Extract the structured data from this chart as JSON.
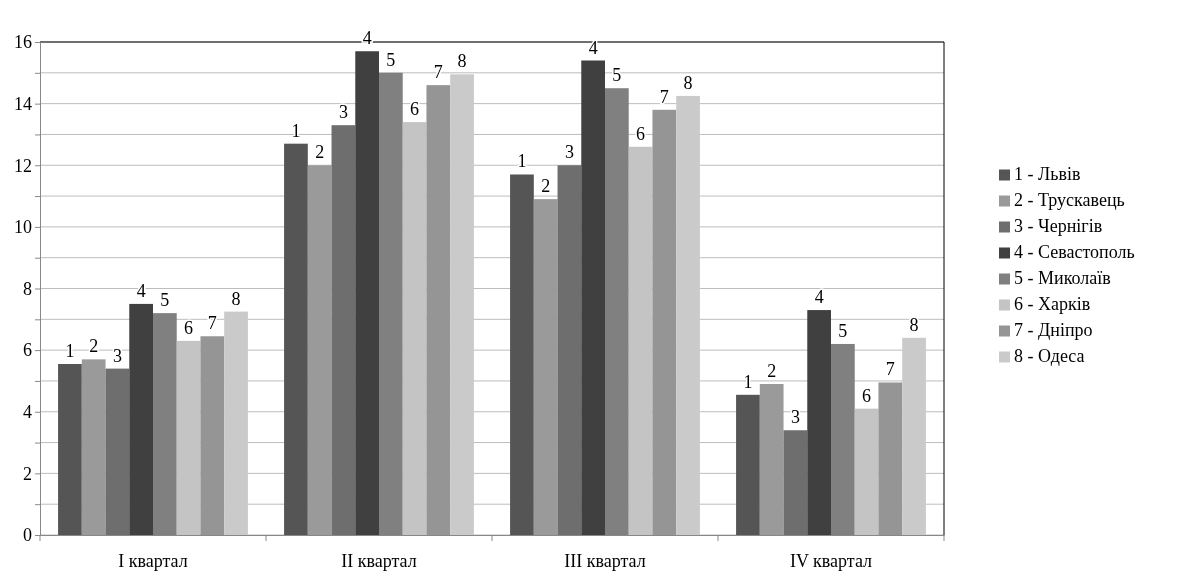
{
  "chart_data": {
    "type": "bar",
    "categories": [
      "I квартал",
      "II квартал",
      "III квартал",
      "IV квартал"
    ],
    "ylim": [
      0,
      16
    ],
    "yticks": [
      0,
      {
        "value": 1,
        "label": null
      },
      2,
      {
        "value": 3,
        "label": null
      },
      4,
      {
        "value": 5,
        "label": null
      },
      6,
      {
        "value": 7,
        "label": null
      },
      8,
      {
        "value": 9,
        "label": null
      },
      10,
      {
        "value": 11,
        "label": null
      },
      12,
      {
        "value": 13,
        "label": null
      },
      14,
      {
        "value": 15,
        "label": null
      },
      16
    ],
    "grid": "y",
    "legend": "right",
    "series": [
      {
        "name": "1 - Львів",
        "color": "#555555",
        "values": [
          5.55,
          12.7,
          11.7,
          4.55
        ]
      },
      {
        "name": "2 - Трускавець",
        "color": "#9a9a9a",
        "values": [
          5.7,
          12.0,
          10.9,
          4.9
        ]
      },
      {
        "name": "3 - Чернігів",
        "color": "#6e6e6e",
        "values": [
          5.4,
          13.3,
          12.0,
          3.4
        ]
      },
      {
        "name": "4 - Севастополь",
        "color": "#404040",
        "values": [
          7.5,
          15.7,
          15.4,
          7.3
        ]
      },
      {
        "name": "5 - Миколаїв",
        "color": "#808080",
        "values": [
          7.2,
          15.0,
          14.5,
          6.2
        ]
      },
      {
        "name": "6 - Харків",
        "color": "#c4c4c4",
        "values": [
          6.3,
          13.4,
          12.6,
          4.1
        ]
      },
      {
        "name": "7 - Дніпро",
        "color": "#959595",
        "values": [
          6.45,
          14.6,
          13.8,
          4.95
        ]
      },
      {
        "name": "8 - Одеса",
        "color": "#cacaca",
        "values": [
          7.25,
          14.95,
          14.25,
          6.4
        ]
      }
    ],
    "annotations": [
      "1",
      "2",
      "3",
      "4",
      "5",
      "6",
      "7",
      "8",
      "1",
      "2",
      "3",
      "4",
      "5",
      "6",
      "7",
      "8",
      "1",
      "2",
      "3",
      "4",
      "5",
      "6",
      "7",
      "8",
      "1",
      "2",
      "3",
      "4",
      "5",
      "6",
      "7",
      "8"
    ]
  }
}
